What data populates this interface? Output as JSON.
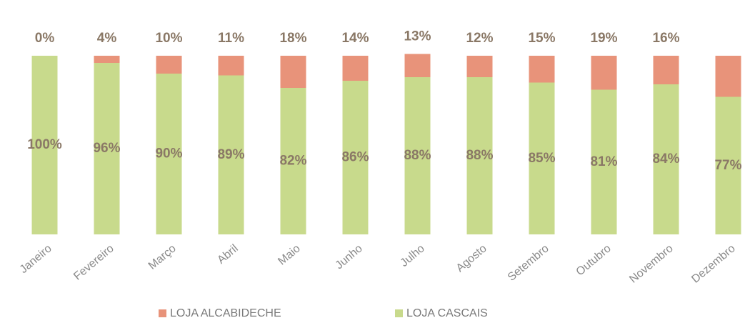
{
  "chart_data": {
    "type": "stacked_bar",
    "categories": [
      "Janeiro",
      "Fevereiro",
      "Março",
      "Abril",
      "Maio",
      "Junho",
      "Julho",
      "Agosto",
      "Setembro",
      "Outubro",
      "Novembro",
      "Dezembro"
    ],
    "series": [
      {
        "name": "LOJA CASCAIS",
        "color": "#c8da8c",
        "values": [
          100,
          96,
          90,
          89,
          82,
          86,
          88,
          88,
          85,
          81,
          84,
          77
        ],
        "value_labels": [
          "100%",
          "96%",
          "90%",
          "89%",
          "82%",
          "86%",
          "88%",
          "88%",
          "85%",
          "81%",
          "84%",
          "77%"
        ]
      },
      {
        "name": "LOJA ALCABIDECHE",
        "color": "#e8937a",
        "values": [
          0,
          4,
          10,
          11,
          18,
          14,
          13,
          12,
          15,
          19,
          16,
          23
        ],
        "value_labels": [
          "0%",
          "4%",
          "10%",
          "11%",
          "18%",
          "14%",
          "13%",
          "12%",
          "15%",
          "19%",
          "16%",
          null
        ]
      }
    ],
    "ylim": [
      0,
      100
    ]
  }
}
